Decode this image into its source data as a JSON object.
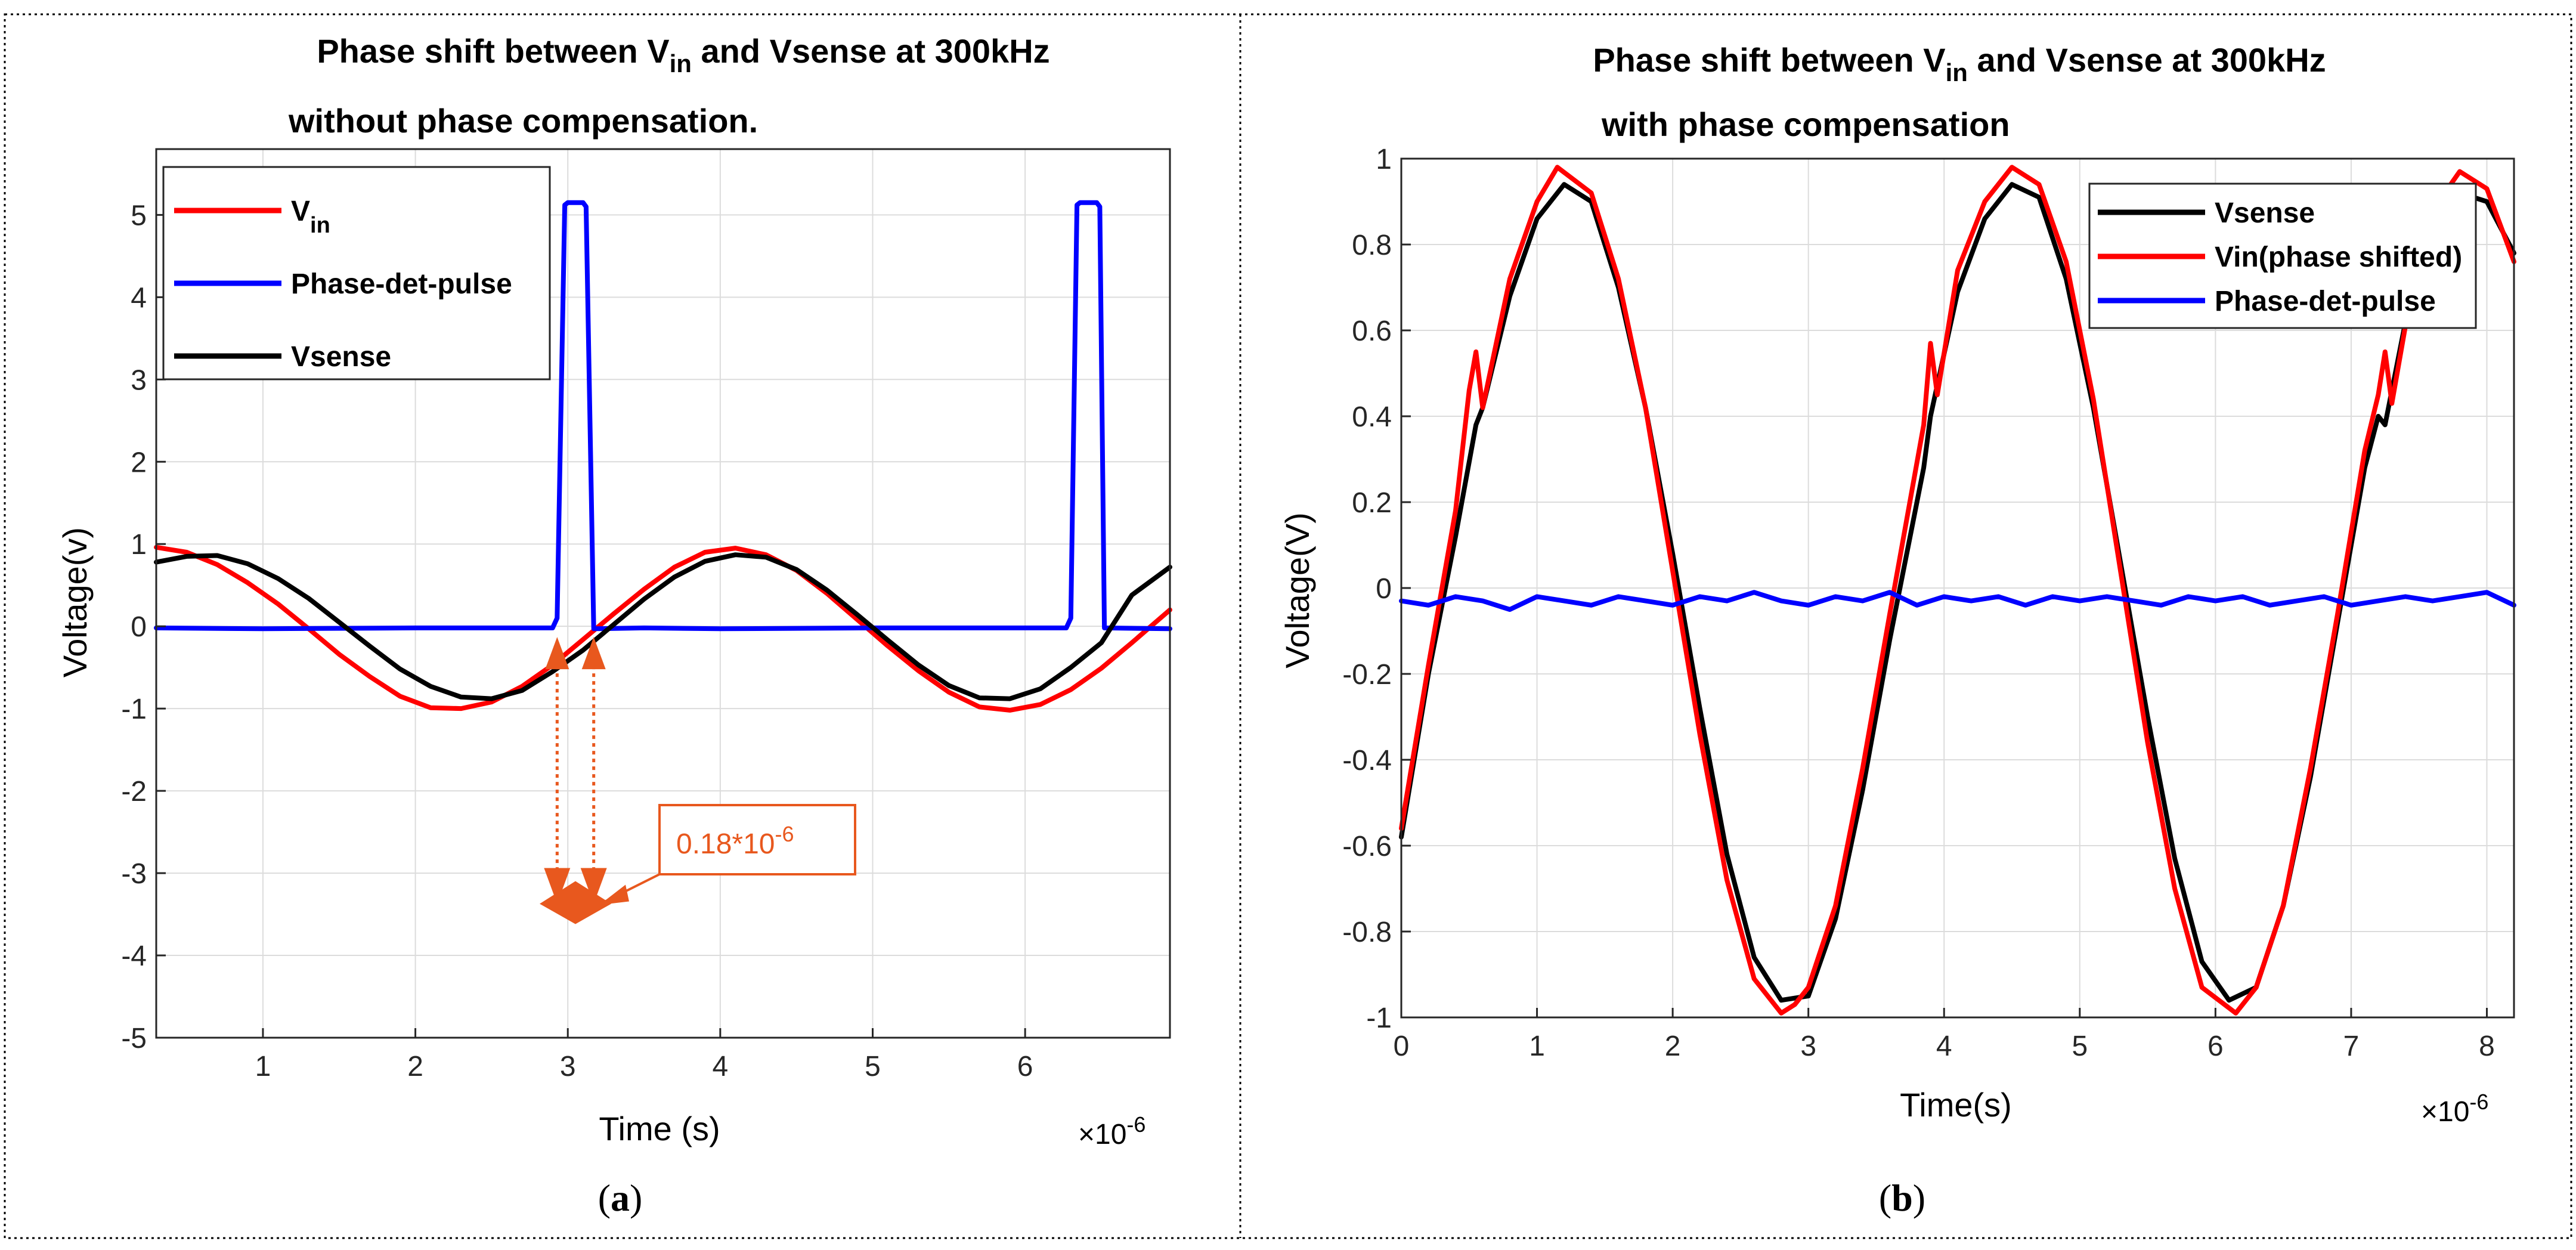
{
  "chart_data": [
    {
      "type": "line",
      "panel_label": "a",
      "title_line1_prefix": "Phase shift between V",
      "title_line1_sub": "in",
      "title_line1_suffix": " and Vsense at 300kHz",
      "title_line2": "without phase compensation.",
      "xlabel": "Time (s)",
      "ylabel": "Voltage(v)",
      "x_exponent_base": "×10",
      "x_exponent": "-6",
      "xlim": [
        0.3,
        6.95
      ],
      "ylim": [
        -5,
        5.8
      ],
      "xticks": [
        1,
        2,
        3,
        4,
        5,
        6
      ],
      "xtick_labels": [
        "1",
        "2",
        "3",
        "4",
        "5",
        "6"
      ],
      "yticks": [
        -5,
        -4,
        -3,
        -2,
        -1,
        0,
        1,
        2,
        3,
        4,
        5
      ],
      "ytick_labels": [
        "-5",
        "-4",
        "-3",
        "-2",
        "-1",
        "0",
        "1",
        "2",
        "3",
        "4",
        "5"
      ],
      "grid": true,
      "legend_position": "top-left",
      "series": [
        {
          "name": "Vin",
          "legend_main": "V",
          "legend_sub": "in",
          "color": "#ff0000",
          "x": [
            0.3,
            0.5,
            0.7,
            0.9,
            1.1,
            1.3,
            1.5,
            1.7,
            1.9,
            2.1,
            2.3,
            2.5,
            2.7,
            2.9,
            3.1,
            3.3,
            3.5,
            3.7,
            3.9,
            4.1,
            4.3,
            4.5,
            4.7,
            4.9,
            5.1,
            5.3,
            5.5,
            5.7,
            5.9,
            6.1,
            6.3,
            6.5,
            6.7,
            6.95
          ],
          "values": [
            0.96,
            0.9,
            0.75,
            0.53,
            0.27,
            -0.03,
            -0.34,
            -0.61,
            -0.85,
            -0.99,
            -1.0,
            -0.92,
            -0.73,
            -0.47,
            -0.16,
            0.15,
            0.45,
            0.72,
            0.9,
            0.95,
            0.87,
            0.68,
            0.4,
            0.08,
            -0.24,
            -0.54,
            -0.8,
            -0.98,
            -1.02,
            -0.95,
            -0.77,
            -0.51,
            -0.2,
            0.2
          ]
        },
        {
          "name": "Phase-det-pulse",
          "legend_main": "Phase-det-pulse",
          "legend_sub": "",
          "color": "#0000ff",
          "x": [
            0.3,
            1.0,
            2.0,
            2.9,
            2.93,
            2.98,
            3.0,
            3.1,
            3.12,
            3.17,
            3.5,
            4.0,
            5.0,
            6.27,
            6.3,
            6.34,
            6.36,
            6.47,
            6.49,
            6.52,
            6.95
          ],
          "values": [
            -0.02,
            -0.03,
            -0.02,
            -0.02,
            0.1,
            5.12,
            5.15,
            5.15,
            5.1,
            -0.03,
            -0.02,
            -0.03,
            -0.02,
            -0.02,
            0.1,
            5.12,
            5.15,
            5.15,
            5.1,
            -0.02,
            -0.03
          ]
        },
        {
          "name": "Vsense",
          "legend_main": "Vsense",
          "legend_sub": "",
          "color": "#000000",
          "x": [
            0.3,
            0.5,
            0.7,
            0.9,
            1.1,
            1.3,
            1.5,
            1.7,
            1.9,
            2.1,
            2.3,
            2.5,
            2.7,
            2.9,
            3.1,
            3.3,
            3.5,
            3.7,
            3.9,
            4.1,
            4.3,
            4.5,
            4.7,
            4.9,
            5.1,
            5.3,
            5.5,
            5.7,
            5.9,
            6.1,
            6.3,
            6.5,
            6.7,
            6.95
          ],
          "values": [
            0.78,
            0.85,
            0.86,
            0.76,
            0.58,
            0.34,
            0.05,
            -0.24,
            -0.52,
            -0.73,
            -0.86,
            -0.88,
            -0.78,
            -0.55,
            -0.29,
            0.02,
            0.33,
            0.6,
            0.79,
            0.87,
            0.84,
            0.69,
            0.44,
            0.14,
            -0.17,
            -0.47,
            -0.72,
            -0.87,
            -0.88,
            -0.76,
            -0.5,
            -0.2,
            0.38,
            0.72
          ]
        }
      ],
      "annotation": {
        "text_base": "0.18*10",
        "text_exp": "-6",
        "color": "#e8581e",
        "pulse_start_x": 2.93,
        "pulse_end_x": 3.17,
        "meet_y": -3.3
      }
    },
    {
      "type": "line",
      "panel_label": "b",
      "title_line1_prefix": "Phase shift between V",
      "title_line1_sub": "in",
      "title_line1_suffix": " and Vsense at 300kHz",
      "title_line2": "with phase compensation",
      "xlabel": "Time(s)",
      "ylabel": "Voltage(V)",
      "x_exponent_base": "×10",
      "x_exponent": "-6",
      "xlim": [
        0,
        8.2
      ],
      "ylim": [
        -1,
        1
      ],
      "xticks": [
        0,
        1,
        2,
        3,
        4,
        5,
        6,
        7,
        8
      ],
      "xtick_labels": [
        "0",
        "1",
        "2",
        "3",
        "4",
        "5",
        "6",
        "7",
        "8"
      ],
      "yticks": [
        -1,
        -0.8,
        -0.6,
        -0.4,
        -0.2,
        0,
        0.2,
        0.4,
        0.6,
        0.8,
        1
      ],
      "ytick_labels": [
        "-1",
        "-0.8",
        "-0.6",
        "-0.4",
        "-0.2",
        "0",
        "0.2",
        "0.4",
        "0.6",
        "0.8",
        "1"
      ],
      "grid": true,
      "legend_position": "top-right",
      "series": [
        {
          "name": "Vsense",
          "legend_main": "Vsense",
          "legend_sub": "",
          "color": "#000000",
          "x": [
            0,
            0.2,
            0.4,
            0.55,
            0.6,
            0.8,
            1.0,
            1.2,
            1.4,
            1.6,
            1.8,
            2.0,
            2.2,
            2.4,
            2.6,
            2.8,
            3.0,
            3.2,
            3.4,
            3.6,
            3.85,
            3.9,
            4.1,
            4.3,
            4.5,
            4.7,
            4.9,
            5.1,
            5.3,
            5.5,
            5.7,
            5.9,
            6.1,
            6.3,
            6.5,
            6.7,
            6.9,
            7.1,
            7.2,
            7.25,
            7.4,
            7.6,
            7.8,
            8.0,
            8.2
          ],
          "values": [
            -0.58,
            -0.2,
            0.12,
            0.38,
            0.42,
            0.68,
            0.86,
            0.94,
            0.9,
            0.7,
            0.42,
            0.08,
            -0.28,
            -0.62,
            -0.86,
            -0.96,
            -0.95,
            -0.77,
            -0.47,
            -0.12,
            0.28,
            0.4,
            0.69,
            0.86,
            0.94,
            0.91,
            0.72,
            0.42,
            0.06,
            -0.3,
            -0.63,
            -0.87,
            -0.96,
            -0.93,
            -0.74,
            -0.44,
            -0.08,
            0.28,
            0.4,
            0.38,
            0.62,
            0.82,
            0.92,
            0.9,
            0.78
          ]
        },
        {
          "name": "Vin(phase shifted)",
          "legend_main": "Vin(phase shifted)",
          "legend_sub": "",
          "color": "#ff0000",
          "x": [
            0,
            0.2,
            0.4,
            0.5,
            0.55,
            0.6,
            0.8,
            1.0,
            1.15,
            1.4,
            1.6,
            1.8,
            2.0,
            2.2,
            2.4,
            2.6,
            2.8,
            2.9,
            3.0,
            3.2,
            3.4,
            3.6,
            3.85,
            3.9,
            3.95,
            4.1,
            4.3,
            4.5,
            4.7,
            4.9,
            5.1,
            5.3,
            5.5,
            5.7,
            5.9,
            6.15,
            6.3,
            6.5,
            6.7,
            6.9,
            7.1,
            7.2,
            7.25,
            7.3,
            7.45,
            7.6,
            7.8,
            8.0,
            8.2
          ],
          "values": [
            -0.56,
            -0.18,
            0.18,
            0.46,
            0.55,
            0.42,
            0.72,
            0.9,
            0.98,
            0.92,
            0.72,
            0.42,
            0.04,
            -0.34,
            -0.68,
            -0.91,
            -0.99,
            -0.97,
            -0.93,
            -0.74,
            -0.42,
            -0.06,
            0.38,
            0.57,
            0.45,
            0.74,
            0.9,
            0.98,
            0.94,
            0.76,
            0.44,
            0.04,
            -0.36,
            -0.7,
            -0.93,
            -0.99,
            -0.93,
            -0.74,
            -0.42,
            -0.06,
            0.32,
            0.45,
            0.55,
            0.43,
            0.7,
            0.88,
            0.97,
            0.93,
            0.76
          ]
        },
        {
          "name": "Phase-det-pulse",
          "legend_main": "Phase-det-pulse",
          "legend_sub": "",
          "color": "#0000ff",
          "x": [
            0,
            0.2,
            0.4,
            0.6,
            0.8,
            1.0,
            1.2,
            1.4,
            1.6,
            1.8,
            2.0,
            2.2,
            2.4,
            2.6,
            2.8,
            3.0,
            3.2,
            3.4,
            3.6,
            3.8,
            4.0,
            4.2,
            4.4,
            4.6,
            4.8,
            5.0,
            5.2,
            5.4,
            5.6,
            5.8,
            6.0,
            6.2,
            6.4,
            6.6,
            6.8,
            7.0,
            7.2,
            7.4,
            7.6,
            7.8,
            8.0,
            8.2
          ],
          "values": [
            -0.03,
            -0.04,
            -0.02,
            -0.03,
            -0.05,
            -0.02,
            -0.03,
            -0.04,
            -0.02,
            -0.03,
            -0.04,
            -0.02,
            -0.03,
            -0.01,
            -0.03,
            -0.04,
            -0.02,
            -0.03,
            -0.01,
            -0.04,
            -0.02,
            -0.03,
            -0.02,
            -0.04,
            -0.02,
            -0.03,
            -0.02,
            -0.03,
            -0.04,
            -0.02,
            -0.03,
            -0.02,
            -0.04,
            -0.03,
            -0.02,
            -0.04,
            -0.03,
            -0.02,
            -0.03,
            -0.02,
            -0.01,
            -0.04
          ]
        }
      ]
    }
  ]
}
